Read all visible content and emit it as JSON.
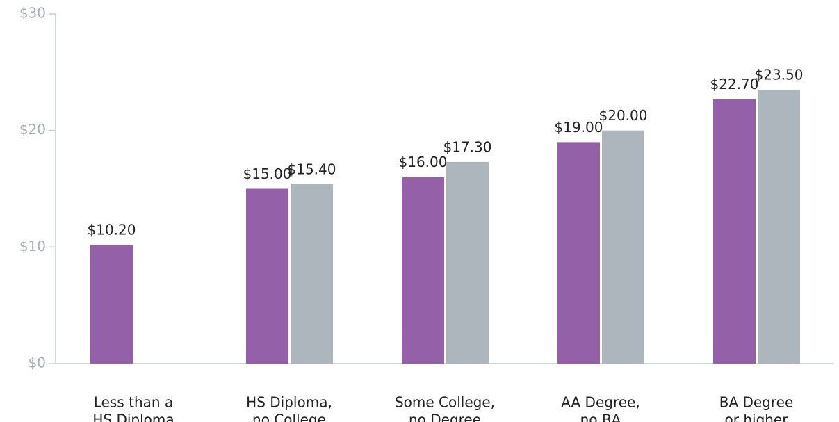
{
  "chart_data": {
    "type": "bar",
    "categories": [
      [
        "Less than a",
        "HS Diploma"
      ],
      [
        "HS Diploma,",
        "no College"
      ],
      [
        "Some College,",
        "no Degree"
      ],
      [
        "AA Degree,",
        "no BA"
      ],
      [
        "BA Degree",
        "or higher"
      ]
    ],
    "series": [
      {
        "color": "#9461a9",
        "values": [
          10.2,
          15.0,
          16.0,
          19.0,
          22.7
        ],
        "value_labels": [
          "$10.20",
          "$15.00",
          "$16.00",
          "$19.00",
          "$22.70"
        ]
      },
      {
        "color": "#adb6bd",
        "values": [
          null,
          15.4,
          17.3,
          20.0,
          23.5
        ],
        "value_labels": [
          null,
          "$15.40",
          "$17.30",
          "$20.00",
          "$23.50"
        ]
      }
    ],
    "ylim": [
      0,
      30
    ],
    "yticks": [
      {
        "value": 0,
        "label": "$0"
      },
      {
        "value": 10,
        "label": "$10"
      },
      {
        "value": 20,
        "label": "$20"
      },
      {
        "value": 30,
        "label": "$30"
      }
    ],
    "grid": false
  }
}
